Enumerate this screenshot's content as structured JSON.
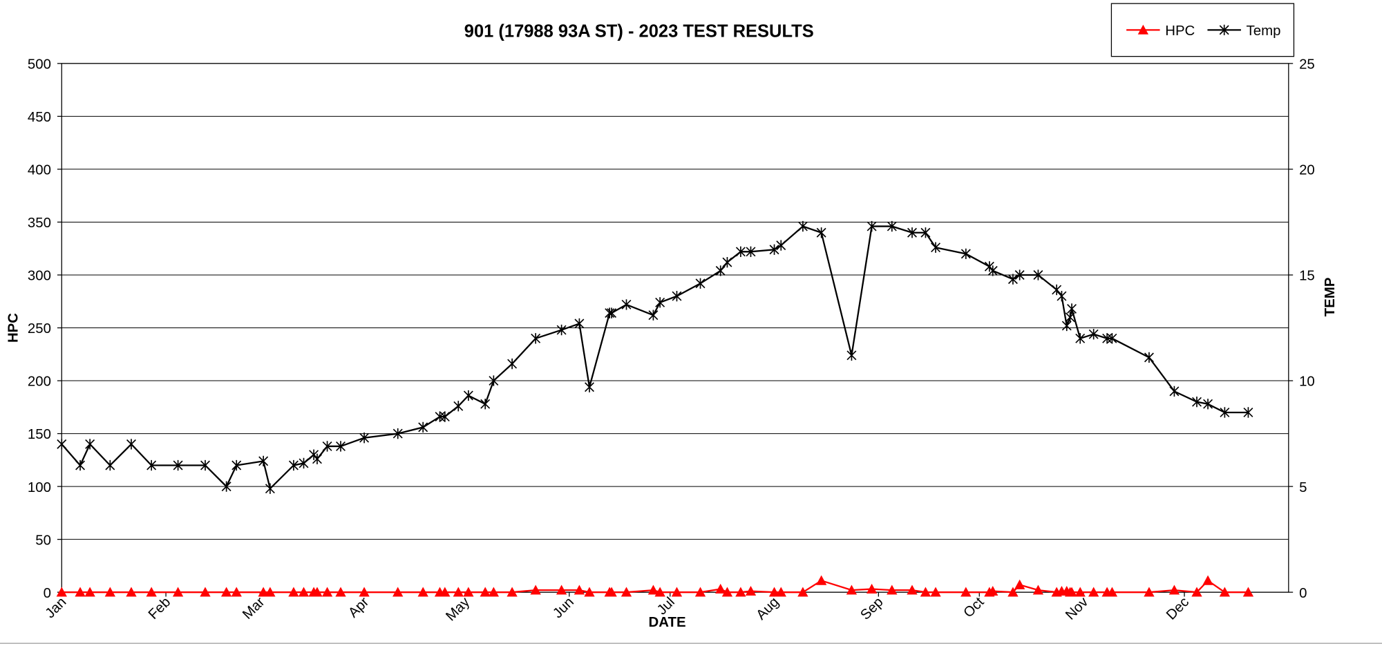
{
  "chart_data": {
    "type": "line",
    "title": "901 (17988 93A ST) - 2023 TEST RESULTS",
    "xlabel": "DATE",
    "ylabel": "HPC",
    "y2label": "TEMP",
    "x": [
      0,
      5.5,
      8.4,
      14.4,
      20.7,
      26.7,
      34.6,
      42.7,
      49,
      52,
      60,
      62,
      69,
      72,
      75,
      76,
      79,
      83,
      90,
      100,
      107.5,
      112.5,
      114,
      118,
      121,
      126,
      128.5,
      134,
      141,
      148.7,
      154,
      157,
      163,
      163.6,
      168,
      176,
      178,
      183,
      190,
      196,
      198,
      202,
      205,
      212,
      214,
      220.5,
      226,
      235,
      241,
      247,
      253,
      257,
      260,
      269,
      276,
      277,
      283,
      285,
      290.5,
      296,
      297.5,
      299,
      300,
      300.5,
      303,
      307,
      311,
      312.5,
      323.5,
      331,
      337.7,
      341,
      346,
      353
    ],
    "series": [
      {
        "name": "HPC",
        "color": "#ff0000",
        "marker": "triangle",
        "axis": "y",
        "values": [
          0,
          0,
          0,
          0,
          0,
          0,
          0,
          0,
          0,
          0,
          0,
          0,
          0,
          0,
          0,
          0,
          0,
          0,
          0,
          0,
          0,
          0,
          0,
          0,
          0,
          0,
          0,
          0,
          2,
          2,
          2,
          0,
          0,
          0,
          0,
          2,
          0,
          0,
          0,
          3,
          0,
          0,
          1,
          0,
          0,
          0,
          11,
          2,
          3,
          2,
          2,
          0,
          0,
          0,
          0,
          1,
          0,
          7,
          2,
          0,
          1,
          1,
          0,
          0,
          0,
          0,
          0,
          0,
          0,
          2,
          0,
          11,
          0,
          0
        ]
      },
      {
        "name": "Temp",
        "color": "#000000",
        "marker": "asterisk",
        "axis": "y2",
        "values": [
          7.0,
          6.0,
          7.0,
          6.0,
          7.0,
          6.0,
          6.0,
          6.0,
          5.0,
          6.0,
          6.2,
          4.9,
          6.0,
          6.1,
          6.5,
          6.3,
          6.9,
          6.9,
          7.3,
          7.5,
          7.8,
          8.3,
          8.3,
          8.8,
          9.3,
          8.9,
          10.0,
          10.8,
          12.0,
          12.4,
          12.7,
          9.7,
          13.2,
          13.2,
          13.6,
          13.1,
          13.7,
          14.0,
          14.6,
          15.2,
          15.6,
          16.1,
          16.1,
          16.2,
          16.4,
          17.3,
          17.0,
          11.2,
          17.3,
          17.3,
          17.0,
          17.0,
          16.3,
          16.0,
          15.4,
          15.2,
          14.8,
          15.0,
          15.0,
          14.3,
          14.0,
          12.6,
          13.0,
          13.4,
          12.0,
          12.2,
          12.0,
          12.0,
          11.1,
          9.5,
          9.0,
          8.9,
          8.5,
          8.5
        ]
      }
    ],
    "xlim": [
      0,
      365
    ],
    "xticks": [
      {
        "value": 0,
        "label": "Jan"
      },
      {
        "value": 31,
        "label": "Feb"
      },
      {
        "value": 59,
        "label": "Mar"
      },
      {
        "value": 90,
        "label": "Apr"
      },
      {
        "value": 120,
        "label": "May"
      },
      {
        "value": 151,
        "label": "Jun"
      },
      {
        "value": 181,
        "label": "Jul"
      },
      {
        "value": 212,
        "label": "Aug"
      },
      {
        "value": 243,
        "label": "Sep"
      },
      {
        "value": 273,
        "label": "Oct"
      },
      {
        "value": 304,
        "label": "Nov"
      },
      {
        "value": 334,
        "label": "Dec"
      }
    ],
    "ylim": [
      0,
      500
    ],
    "yticks": [
      0,
      50,
      100,
      150,
      200,
      250,
      300,
      350,
      400,
      450,
      500
    ],
    "y2lim": [
      0,
      25
    ],
    "y2ticks": [
      0,
      5,
      10,
      15,
      20,
      25
    ],
    "grid": true,
    "legend": "top-right"
  }
}
